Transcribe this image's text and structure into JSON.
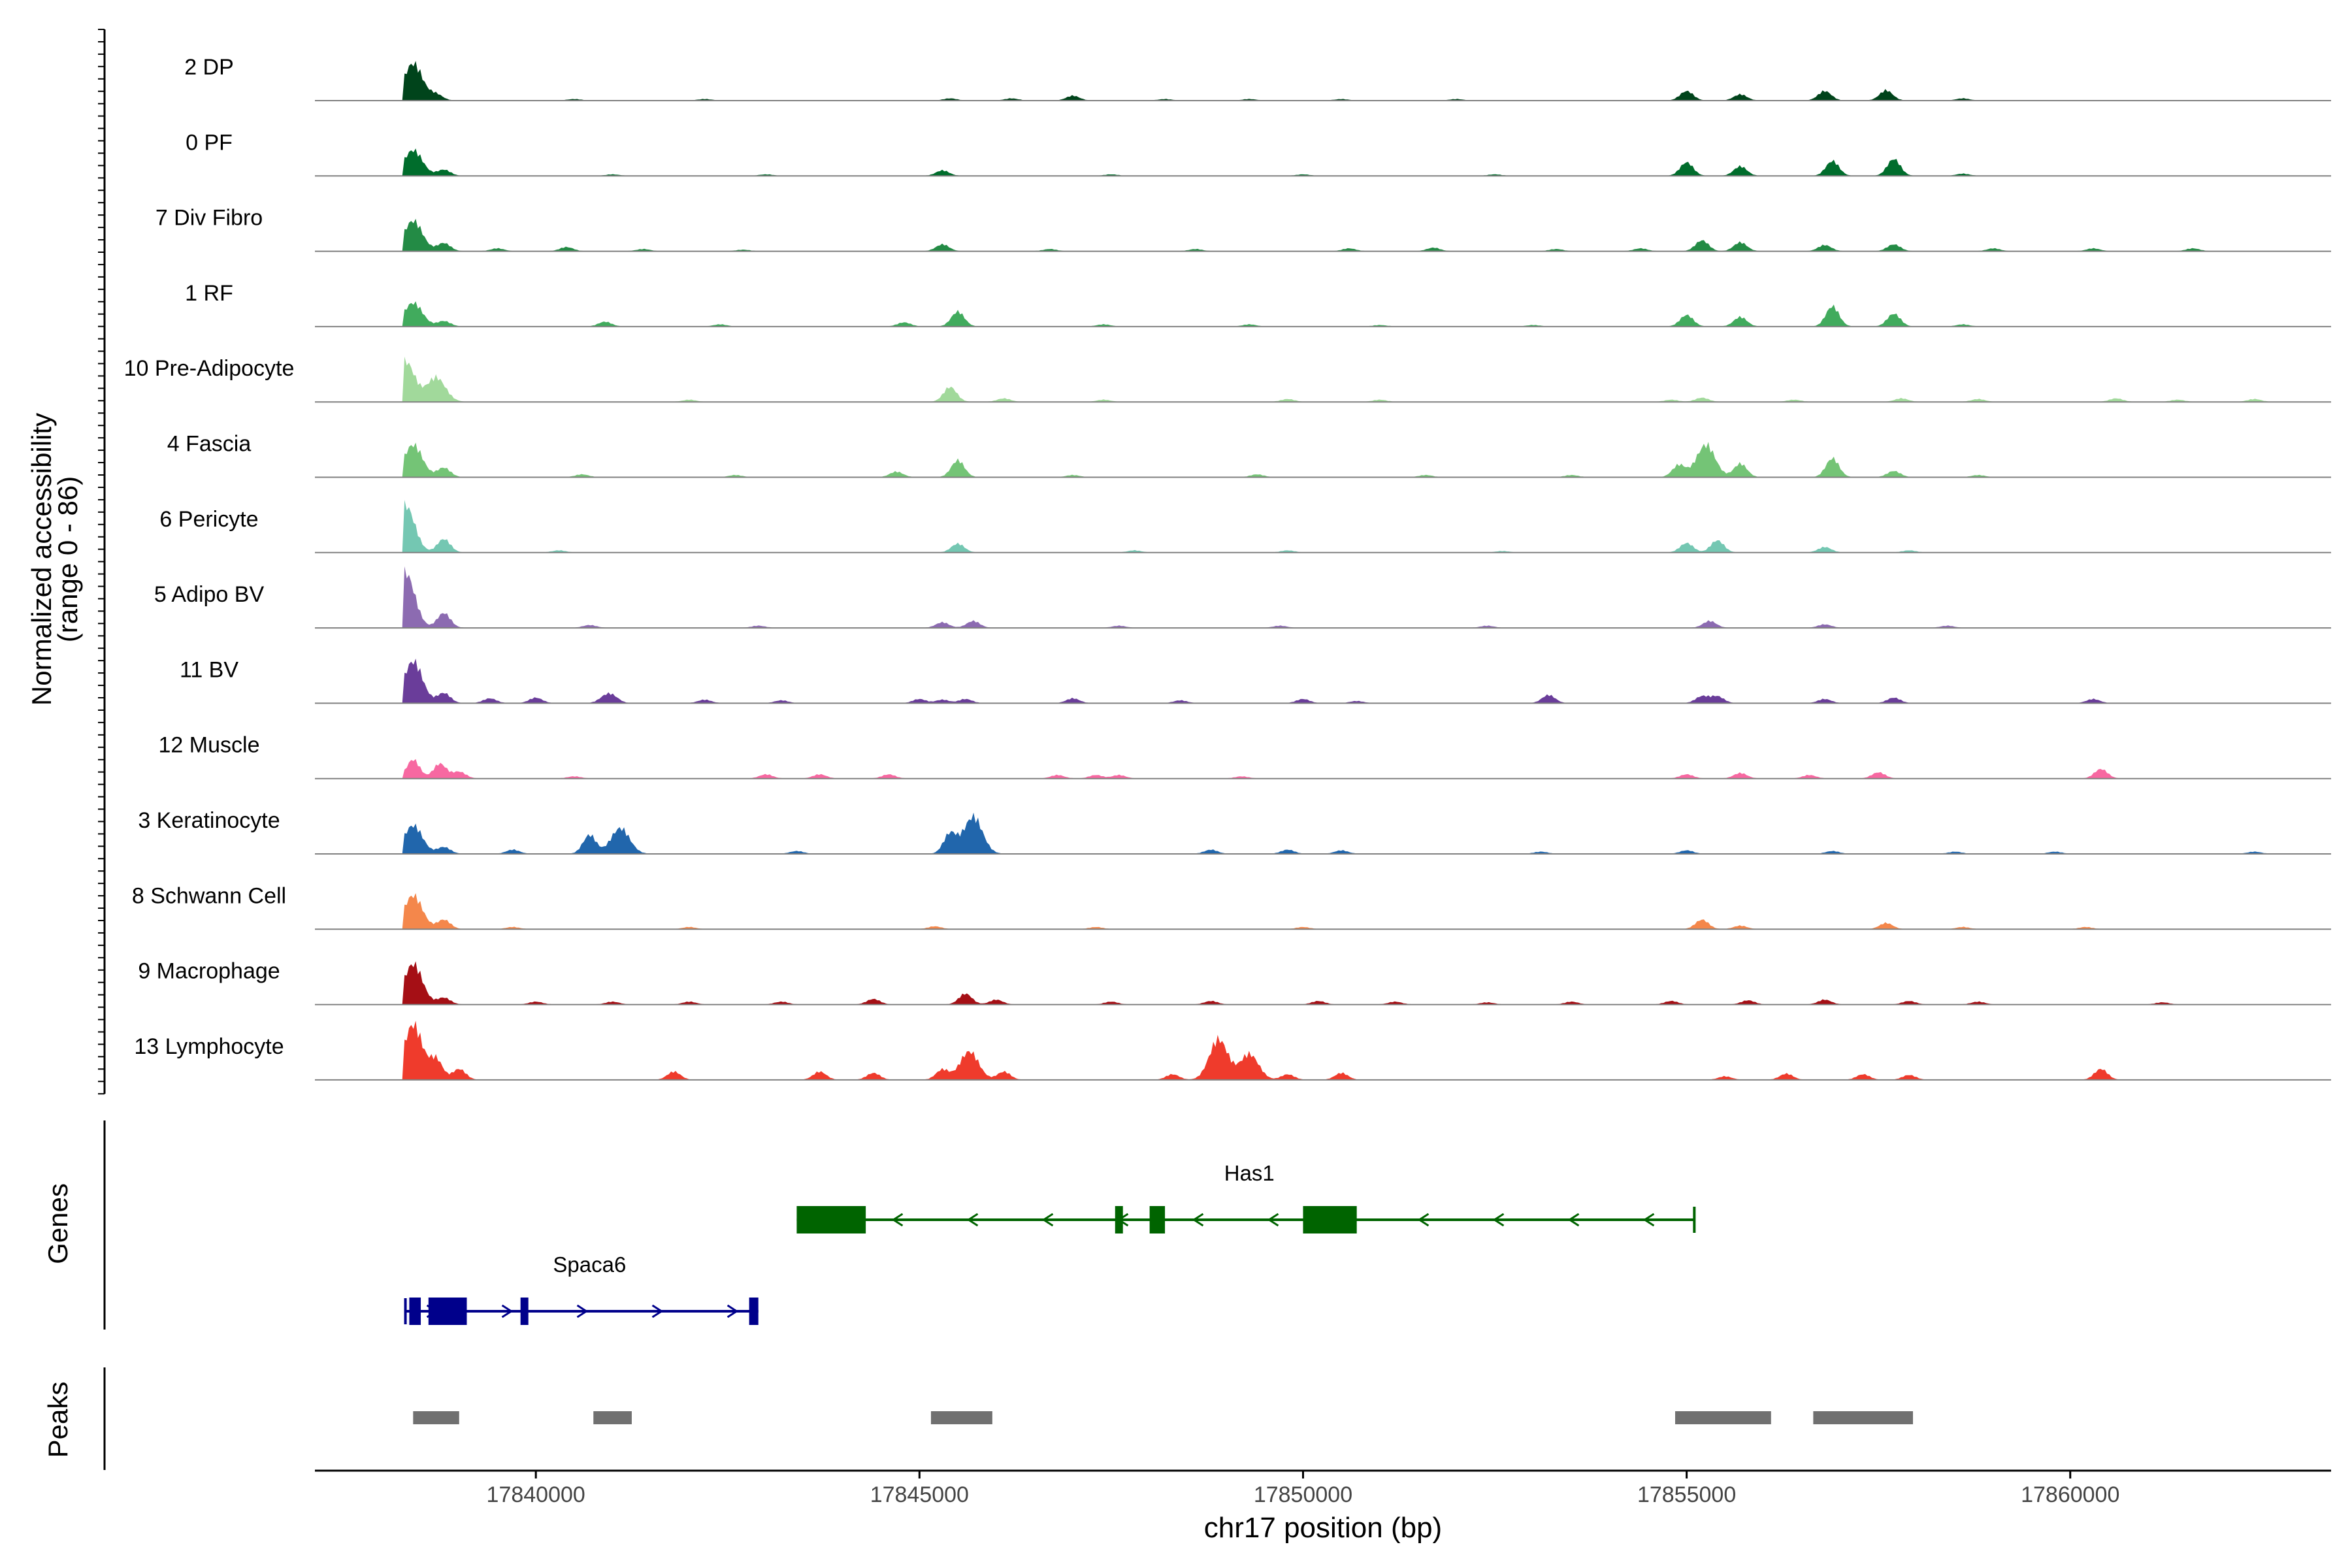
{
  "chart_data": {
    "type": "area",
    "title": "",
    "xlabel": "chr17 position (bp)",
    "ylabel_line1": "Normalized accessibility",
    "ylabel_line2": "(range 0 - 86)",
    "ylim": [
      0,
      86
    ],
    "xlim": [
      17837120,
      17863400
    ],
    "xticks": [
      17840000,
      17845000,
      17850000,
      17855000,
      17860000
    ],
    "xtick_labels": [
      "17840000",
      "17845000",
      "17850000",
      "17855000",
      "17860000"
    ],
    "genes_label": "Genes",
    "peaks_label": "Peaks",
    "tracks": [
      {
        "name": "2 DP",
        "color": "#00441b",
        "peaks": [
          [
            17838400,
            55
          ],
          [
            17838700,
            9
          ],
          [
            17840500,
            2
          ],
          [
            17842200,
            2
          ],
          [
            17845400,
            3
          ],
          [
            17846200,
            3
          ],
          [
            17847000,
            7
          ],
          [
            17848200,
            2
          ],
          [
            17849300,
            2
          ],
          [
            17850500,
            2
          ],
          [
            17852000,
            2
          ],
          [
            17855000,
            14
          ],
          [
            17855700,
            9
          ],
          [
            17856800,
            14
          ],
          [
            17857600,
            15
          ],
          [
            17858600,
            3
          ]
        ]
      },
      {
        "name": "0 PF",
        "color": "#006d2c",
        "peaks": [
          [
            17838400,
            38
          ],
          [
            17838800,
            9
          ],
          [
            17841000,
            2
          ],
          [
            17843000,
            2
          ],
          [
            17845300,
            8
          ],
          [
            17847500,
            2
          ],
          [
            17850000,
            2
          ],
          [
            17852500,
            2
          ],
          [
            17855000,
            20
          ],
          [
            17855700,
            14
          ],
          [
            17856900,
            22
          ],
          [
            17857700,
            25
          ],
          [
            17858600,
            3
          ]
        ]
      },
      {
        "name": "7 Div Fibro",
        "color": "#238b45",
        "peaks": [
          [
            17838400,
            45
          ],
          [
            17838800,
            12
          ],
          [
            17839500,
            4
          ],
          [
            17840400,
            6
          ],
          [
            17841400,
            3
          ],
          [
            17842700,
            2
          ],
          [
            17845300,
            10
          ],
          [
            17846700,
            3
          ],
          [
            17848600,
            3
          ],
          [
            17850600,
            4
          ],
          [
            17851700,
            5
          ],
          [
            17853300,
            3
          ],
          [
            17854400,
            4
          ],
          [
            17855200,
            16
          ],
          [
            17855700,
            13
          ],
          [
            17856800,
            9
          ],
          [
            17857700,
            10
          ],
          [
            17859000,
            4
          ],
          [
            17860300,
            4
          ],
          [
            17861600,
            4
          ]
        ]
      },
      {
        "name": "1 RF",
        "color": "#41ab5d",
        "peaks": [
          [
            17838400,
            35
          ],
          [
            17838800,
            8
          ],
          [
            17840900,
            7
          ],
          [
            17842400,
            3
          ],
          [
            17844800,
            6
          ],
          [
            17845500,
            22
          ],
          [
            17847400,
            3
          ],
          [
            17849300,
            3
          ],
          [
            17851000,
            2
          ],
          [
            17853000,
            2
          ],
          [
            17855000,
            17
          ],
          [
            17855700,
            14
          ],
          [
            17856900,
            30
          ],
          [
            17857700,
            19
          ],
          [
            17858600,
            3
          ]
        ]
      },
      {
        "name": "10 Pre-Adipocyte",
        "color": "#a1d99b",
        "peaks": [
          [
            17838300,
            60
          ],
          [
            17838700,
            36
          ],
          [
            17842000,
            3
          ],
          [
            17845400,
            22
          ],
          [
            17846100,
            5
          ],
          [
            17847400,
            3
          ],
          [
            17849800,
            4
          ],
          [
            17851000,
            3
          ],
          [
            17854800,
            3
          ],
          [
            17855200,
            6
          ],
          [
            17856400,
            3
          ],
          [
            17857800,
            5
          ],
          [
            17858800,
            4
          ],
          [
            17860600,
            5
          ],
          [
            17861400,
            3
          ],
          [
            17862400,
            4
          ]
        ]
      },
      {
        "name": "4 Fascia",
        "color": "#74c476",
        "peaks": [
          [
            17838400,
            48
          ],
          [
            17838800,
            14
          ],
          [
            17840600,
            4
          ],
          [
            17842600,
            3
          ],
          [
            17844700,
            8
          ],
          [
            17845500,
            25
          ],
          [
            17847000,
            3
          ],
          [
            17849400,
            4
          ],
          [
            17851600,
            3
          ],
          [
            17853500,
            3
          ],
          [
            17854900,
            18
          ],
          [
            17855250,
            48
          ],
          [
            17855700,
            20
          ],
          [
            17856900,
            28
          ],
          [
            17857700,
            9
          ],
          [
            17858800,
            3
          ]
        ]
      },
      {
        "name": "6 Pericyte",
        "color": "#74c7b2",
        "peaks": [
          [
            17838300,
            70
          ],
          [
            17838800,
            20
          ],
          [
            17840300,
            3
          ],
          [
            17845500,
            13
          ],
          [
            17847800,
            3
          ],
          [
            17849800,
            3
          ],
          [
            17852600,
            2
          ],
          [
            17855000,
            14
          ],
          [
            17855400,
            18
          ],
          [
            17856800,
            8
          ],
          [
            17857900,
            3
          ]
        ]
      },
      {
        "name": "5 Adipo BV",
        "color": "#8c6bb1",
        "peaks": [
          [
            17838300,
            82
          ],
          [
            17838800,
            22
          ],
          [
            17840700,
            4
          ],
          [
            17842900,
            3
          ],
          [
            17845300,
            8
          ],
          [
            17845700,
            10
          ],
          [
            17847600,
            3
          ],
          [
            17849700,
            3
          ],
          [
            17852400,
            3
          ],
          [
            17855300,
            10
          ],
          [
            17856800,
            5
          ],
          [
            17858400,
            3
          ]
        ]
      },
      {
        "name": "11 BV",
        "color": "#6a3d9a",
        "peaks": [
          [
            17838400,
            62
          ],
          [
            17838800,
            15
          ],
          [
            17839400,
            7
          ],
          [
            17840000,
            8
          ],
          [
            17840900,
            8
          ],
          [
            17841000,
            9
          ],
          [
            17842200,
            5
          ],
          [
            17843200,
            4
          ],
          [
            17845000,
            6
          ],
          [
            17845300,
            5
          ],
          [
            17845600,
            6
          ],
          [
            17847000,
            7
          ],
          [
            17848400,
            4
          ],
          [
            17850000,
            6
          ],
          [
            17850700,
            3
          ],
          [
            17853200,
            12
          ],
          [
            17855200,
            10
          ],
          [
            17855400,
            10
          ],
          [
            17856800,
            6
          ],
          [
            17857700,
            8
          ],
          [
            17860300,
            6
          ]
        ]
      },
      {
        "name": "12 Muscle",
        "color": "#f768a1",
        "peaks": [
          [
            17838400,
            28
          ],
          [
            17838750,
            22
          ],
          [
            17839000,
            10
          ],
          [
            17840500,
            3
          ],
          [
            17843000,
            6
          ],
          [
            17843700,
            6
          ],
          [
            17844600,
            6
          ],
          [
            17846800,
            5
          ],
          [
            17847300,
            5
          ],
          [
            17847600,
            5
          ],
          [
            17849200,
            3
          ],
          [
            17855000,
            6
          ],
          [
            17855700,
            8
          ],
          [
            17856600,
            5
          ],
          [
            17857500,
            9
          ],
          [
            17860400,
            14
          ]
        ]
      },
      {
        "name": "3 Keratinocyte",
        "color": "#2166ac",
        "peaks": [
          [
            17838400,
            42
          ],
          [
            17838800,
            10
          ],
          [
            17839700,
            6
          ],
          [
            17840700,
            28
          ],
          [
            17841100,
            38
          ],
          [
            17843400,
            4
          ],
          [
            17845400,
            30
          ],
          [
            17845700,
            55
          ],
          [
            17848800,
            6
          ],
          [
            17849800,
            6
          ],
          [
            17850500,
            5
          ],
          [
            17853100,
            3
          ],
          [
            17855000,
            5
          ],
          [
            17856900,
            4
          ],
          [
            17858500,
            3
          ],
          [
            17859800,
            3
          ],
          [
            17862400,
            3
          ]
        ]
      },
      {
        "name": "8 Schwann Cell",
        "color": "#f4874b",
        "peaks": [
          [
            17838400,
            50
          ],
          [
            17838800,
            14
          ],
          [
            17839700,
            3
          ],
          [
            17842000,
            3
          ],
          [
            17845200,
            4
          ],
          [
            17847300,
            3
          ],
          [
            17850000,
            3
          ],
          [
            17855200,
            14
          ],
          [
            17855700,
            5
          ],
          [
            17857600,
            9
          ],
          [
            17858600,
            3
          ],
          [
            17860200,
            3
          ]
        ]
      },
      {
        "name": "9 Macrophage",
        "color": "#a50f15",
        "peaks": [
          [
            17838400,
            60
          ],
          [
            17838800,
            10
          ],
          [
            17840000,
            4
          ],
          [
            17841000,
            4
          ],
          [
            17842000,
            4
          ],
          [
            17843200,
            4
          ],
          [
            17844400,
            8
          ],
          [
            17845600,
            16
          ],
          [
            17846000,
            7
          ],
          [
            17847500,
            4
          ],
          [
            17848800,
            5
          ],
          [
            17850200,
            5
          ],
          [
            17851200,
            4
          ],
          [
            17852400,
            3
          ],
          [
            17853500,
            4
          ],
          [
            17854800,
            5
          ],
          [
            17855800,
            6
          ],
          [
            17856800,
            7
          ],
          [
            17857900,
            5
          ],
          [
            17858800,
            4
          ],
          [
            17861200,
            3
          ]
        ]
      },
      {
        "name": "13 Lymphocyte",
        "color": "#ef3b2c",
        "peaks": [
          [
            17838400,
            82
          ],
          [
            17838700,
            30
          ],
          [
            17839000,
            16
          ],
          [
            17841800,
            12
          ],
          [
            17843700,
            12
          ],
          [
            17844400,
            10
          ],
          [
            17845300,
            15
          ],
          [
            17845650,
            42
          ],
          [
            17846100,
            12
          ],
          [
            17848300,
            8
          ],
          [
            17848900,
            60
          ],
          [
            17849300,
            38
          ],
          [
            17849800,
            8
          ],
          [
            17850500,
            10
          ],
          [
            17855500,
            5
          ],
          [
            17856300,
            9
          ],
          [
            17857300,
            8
          ],
          [
            17857900,
            7
          ],
          [
            17860400,
            16
          ]
        ]
      }
    ],
    "genes": [
      {
        "name": "Has1",
        "strand": "-",
        "color": "#006400",
        "row": 0,
        "start": 17843400,
        "end": 17855100,
        "exons": [
          [
            17843400,
            17844300
          ],
          [
            17847550,
            17847650
          ],
          [
            17848000,
            17848200
          ],
          [
            17850000,
            17850700
          ]
        ]
      },
      {
        "name": "Spaca6",
        "strand": "+",
        "color": "#00008b",
        "row": 1,
        "start": 17838300,
        "end": 17842900,
        "exons": [
          [
            17838350,
            17838500
          ],
          [
            17838600,
            17839100
          ],
          [
            17839800,
            17839880
          ],
          [
            17842780,
            17842900
          ]
        ]
      }
    ],
    "peaks_track": [
      [
        17838400,
        17839000
      ],
      [
        17840750,
        17841250
      ],
      [
        17845150,
        17845950
      ],
      [
        17854850,
        17856100
      ],
      [
        17856650,
        17857950
      ]
    ]
  }
}
